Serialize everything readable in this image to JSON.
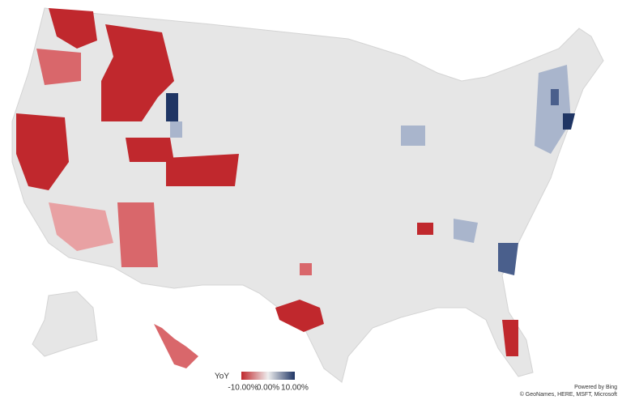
{
  "legend": {
    "title": "YoY",
    "labels": [
      "-10.00%",
      "0.00%",
      "10.00%"
    ]
  },
  "attribution": {
    "powered_by": "Powered by Bing",
    "copyright": "© GeoNames, HERE, MSFT, Microsoft"
  }
}
